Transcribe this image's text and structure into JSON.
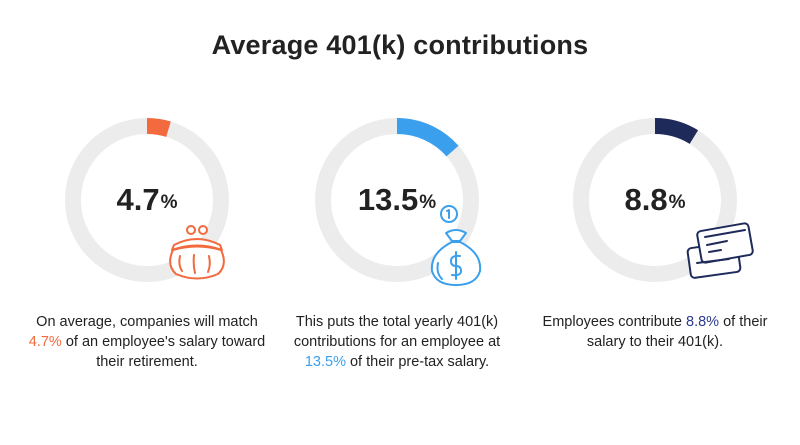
{
  "title": "Average 401(k) contributions",
  "chart_data": {
    "type": "donut",
    "track_color": "#ececec",
    "items": [
      {
        "value": 4.7,
        "value_label": "4.7",
        "unit": "%",
        "color": "#f26a3d",
        "icon": "coin-purse-icon",
        "caption_before": "On average, companies will match ",
        "caption_highlight": "4.7%",
        "caption_after": " of an employee's salary toward their retirement."
      },
      {
        "value": 13.5,
        "value_label": "13.5",
        "unit": "%",
        "color": "#3aa0ee",
        "icon": "money-bag-icon",
        "caption_before": "This puts the total yearly 401(k) contributions for an employee at ",
        "caption_highlight": "13.5%",
        "caption_after": " of their pre-tax salary."
      },
      {
        "value": 8.8,
        "value_label": "8.8",
        "unit": "%",
        "color": "#1e2a5a",
        "icon": "credit-cards-icon",
        "caption_before": "Employees contribute ",
        "caption_highlight": "8.8%",
        "caption_after": " of their salary to their 401(k)."
      }
    ]
  }
}
